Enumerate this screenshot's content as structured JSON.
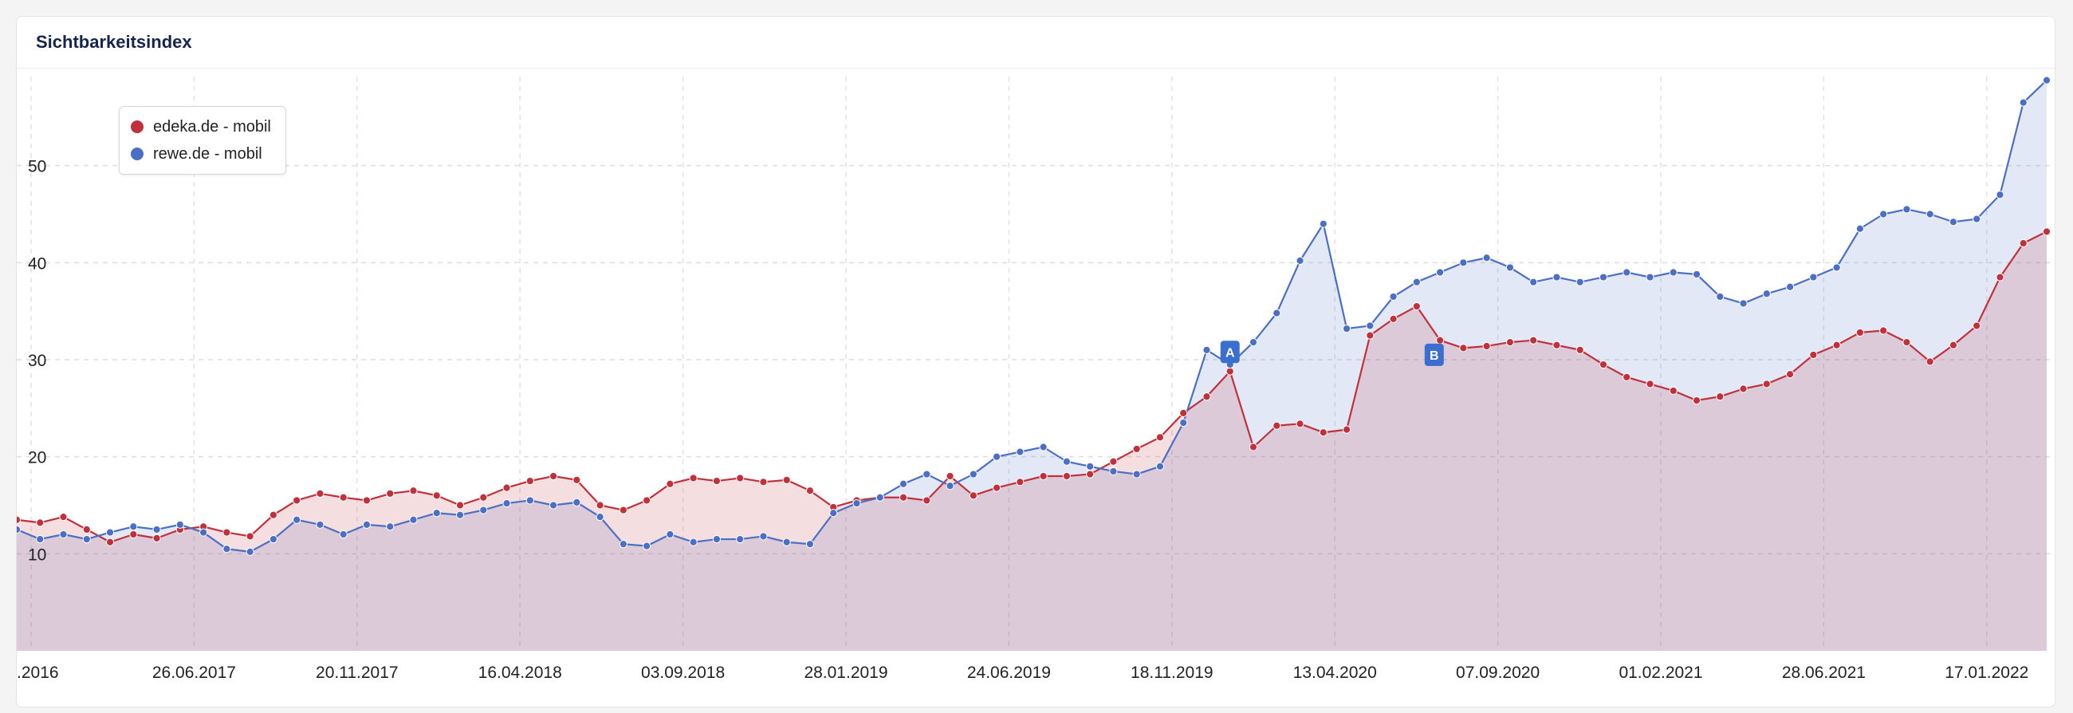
{
  "card": {
    "title": "Sichtbarkeitsindex"
  },
  "chart_data": {
    "type": "area",
    "title": "Sichtbarkeitsindex",
    "ylim": [
      0,
      60
    ],
    "yticks": [
      10,
      20,
      30,
      40,
      50
    ],
    "x_tick_labels": [
      ".2016",
      "26.06.2017",
      "20.11.2017",
      "16.04.2018",
      "03.09.2018",
      "28.01.2019",
      "24.06.2019",
      "18.11.2019",
      "13.04.2020",
      "07.09.2020",
      "01.02.2021",
      "28.06.2021",
      "17.01.2022"
    ],
    "grid": true,
    "legend_position": "top-left",
    "annotations": [
      {
        "label": "A",
        "x": 10.4,
        "y": 30.8,
        "color": "#3a6fd0"
      },
      {
        "label": "B",
        "x": 12.15,
        "y": 30.5,
        "color": "#3a6fd0"
      }
    ],
    "series": [
      {
        "name": "edeka.de - mobil",
        "color": "#c0313c",
        "fill": "#ecd8da",
        "points": [
          [
            0,
            13.5
          ],
          [
            0.2,
            13.2
          ],
          [
            0.4,
            13.8
          ],
          [
            0.6,
            12.5
          ],
          [
            0.8,
            11.2
          ],
          [
            1.0,
            12.0
          ],
          [
            1.2,
            11.6
          ],
          [
            1.4,
            12.5
          ],
          [
            1.6,
            12.8
          ],
          [
            1.8,
            12.2
          ],
          [
            2.0,
            11.8
          ],
          [
            2.2,
            14.0
          ],
          [
            2.4,
            15.5
          ],
          [
            2.6,
            16.2
          ],
          [
            2.8,
            15.8
          ],
          [
            3.0,
            15.5
          ],
          [
            3.2,
            16.2
          ],
          [
            3.4,
            16.5
          ],
          [
            3.6,
            16.0
          ],
          [
            3.8,
            15.0
          ],
          [
            4.0,
            15.8
          ],
          [
            4.2,
            16.8
          ],
          [
            4.4,
            17.5
          ],
          [
            4.6,
            18.0
          ],
          [
            4.8,
            17.6
          ],
          [
            5.0,
            15.0
          ],
          [
            5.2,
            14.5
          ],
          [
            5.4,
            15.5
          ],
          [
            5.6,
            17.2
          ],
          [
            5.8,
            17.8
          ],
          [
            6.0,
            17.5
          ],
          [
            6.2,
            17.8
          ],
          [
            6.4,
            17.4
          ],
          [
            6.6,
            17.6
          ],
          [
            6.8,
            16.5
          ],
          [
            7.0,
            14.8
          ],
          [
            7.2,
            15.5
          ],
          [
            7.4,
            15.8
          ],
          [
            7.6,
            15.8
          ],
          [
            7.8,
            15.5
          ],
          [
            8.0,
            18.0
          ],
          [
            8.2,
            16.0
          ],
          [
            8.4,
            16.8
          ],
          [
            8.6,
            17.4
          ],
          [
            8.8,
            18.0
          ],
          [
            9.0,
            18.0
          ],
          [
            9.2,
            18.2
          ],
          [
            9.4,
            19.5
          ],
          [
            9.6,
            20.8
          ],
          [
            9.8,
            22.0
          ],
          [
            10.0,
            24.5
          ],
          [
            10.2,
            26.2
          ],
          [
            10.4,
            28.8
          ],
          [
            10.6,
            21.0
          ],
          [
            10.8,
            23.2
          ],
          [
            11.0,
            23.4
          ],
          [
            11.2,
            22.5
          ],
          [
            11.4,
            22.8
          ],
          [
            11.6,
            32.5
          ],
          [
            11.8,
            34.2
          ],
          [
            12.0,
            35.5
          ],
          [
            12.2,
            32.0
          ],
          [
            12.4,
            31.2
          ],
          [
            12.6,
            31.4
          ],
          [
            12.8,
            31.8
          ],
          [
            13.0,
            32.0
          ],
          [
            13.2,
            31.5
          ],
          [
            13.4,
            31.0
          ],
          [
            13.6,
            29.5
          ],
          [
            13.8,
            28.2
          ],
          [
            14.0,
            27.5
          ],
          [
            14.2,
            26.8
          ],
          [
            14.4,
            25.8
          ],
          [
            14.6,
            26.2
          ],
          [
            14.8,
            27.0
          ],
          [
            15.0,
            27.5
          ],
          [
            15.2,
            28.5
          ],
          [
            15.4,
            30.5
          ],
          [
            15.6,
            31.5
          ],
          [
            15.8,
            32.8
          ],
          [
            16.0,
            33.0
          ],
          [
            16.2,
            31.8
          ],
          [
            16.4,
            29.8
          ],
          [
            16.6,
            31.5
          ],
          [
            16.8,
            33.5
          ],
          [
            17.0,
            38.5
          ],
          [
            17.2,
            42.0
          ],
          [
            17.4,
            43.2
          ]
        ]
      },
      {
        "name": "rewe.de - mobil",
        "color": "#4a6fc4",
        "fill": "#dde3f4",
        "points": [
          [
            0,
            12.5
          ],
          [
            0.2,
            11.5
          ],
          [
            0.4,
            12.0
          ],
          [
            0.6,
            11.5
          ],
          [
            0.8,
            12.2
          ],
          [
            1.0,
            12.8
          ],
          [
            1.2,
            12.5
          ],
          [
            1.4,
            13.0
          ],
          [
            1.6,
            12.2
          ],
          [
            1.8,
            10.5
          ],
          [
            2.0,
            10.2
          ],
          [
            2.2,
            11.5
          ],
          [
            2.4,
            13.5
          ],
          [
            2.6,
            13.0
          ],
          [
            2.8,
            12.0
          ],
          [
            3.0,
            13.0
          ],
          [
            3.2,
            12.8
          ],
          [
            3.4,
            13.5
          ],
          [
            3.6,
            14.2
          ],
          [
            3.8,
            14.0
          ],
          [
            4.0,
            14.5
          ],
          [
            4.2,
            15.2
          ],
          [
            4.4,
            15.5
          ],
          [
            4.6,
            15.0
          ],
          [
            4.8,
            15.3
          ],
          [
            5.0,
            13.8
          ],
          [
            5.2,
            11.0
          ],
          [
            5.4,
            10.8
          ],
          [
            5.6,
            12.0
          ],
          [
            5.8,
            11.2
          ],
          [
            6.0,
            11.5
          ],
          [
            6.2,
            11.5
          ],
          [
            6.4,
            11.8
          ],
          [
            6.6,
            11.2
          ],
          [
            6.8,
            11.0
          ],
          [
            7.0,
            14.2
          ],
          [
            7.2,
            15.2
          ],
          [
            7.4,
            15.8
          ],
          [
            7.6,
            17.2
          ],
          [
            7.8,
            18.2
          ],
          [
            8.0,
            17.0
          ],
          [
            8.2,
            18.2
          ],
          [
            8.4,
            20.0
          ],
          [
            8.6,
            20.5
          ],
          [
            8.8,
            21.0
          ],
          [
            9.0,
            19.5
          ],
          [
            9.2,
            19.0
          ],
          [
            9.4,
            18.5
          ],
          [
            9.6,
            18.2
          ],
          [
            9.8,
            19.0
          ],
          [
            10.0,
            23.5
          ],
          [
            10.2,
            31.0
          ],
          [
            10.4,
            29.5
          ],
          [
            10.6,
            31.8
          ],
          [
            10.8,
            34.8
          ],
          [
            11.0,
            40.2
          ],
          [
            11.2,
            44.0
          ],
          [
            11.4,
            33.2
          ],
          [
            11.6,
            33.5
          ],
          [
            11.8,
            36.5
          ],
          [
            12.0,
            38.0
          ],
          [
            12.2,
            39.0
          ],
          [
            12.4,
            40.0
          ],
          [
            12.6,
            40.5
          ],
          [
            12.8,
            39.5
          ],
          [
            13.0,
            38.0
          ],
          [
            13.2,
            38.5
          ],
          [
            13.4,
            38.0
          ],
          [
            13.6,
            38.5
          ],
          [
            13.8,
            39.0
          ],
          [
            14.0,
            38.5
          ],
          [
            14.2,
            39.0
          ],
          [
            14.4,
            38.8
          ],
          [
            14.6,
            36.5
          ],
          [
            14.8,
            35.8
          ],
          [
            15.0,
            36.8
          ],
          [
            15.2,
            37.5
          ],
          [
            15.4,
            38.5
          ],
          [
            15.6,
            39.5
          ],
          [
            15.8,
            43.5
          ],
          [
            16.0,
            45.0
          ],
          [
            16.2,
            45.5
          ],
          [
            16.4,
            45.0
          ],
          [
            16.6,
            44.2
          ],
          [
            16.8,
            44.5
          ],
          [
            17.0,
            47.0
          ],
          [
            17.2,
            56.5
          ],
          [
            17.4,
            58.8
          ]
        ]
      }
    ]
  }
}
